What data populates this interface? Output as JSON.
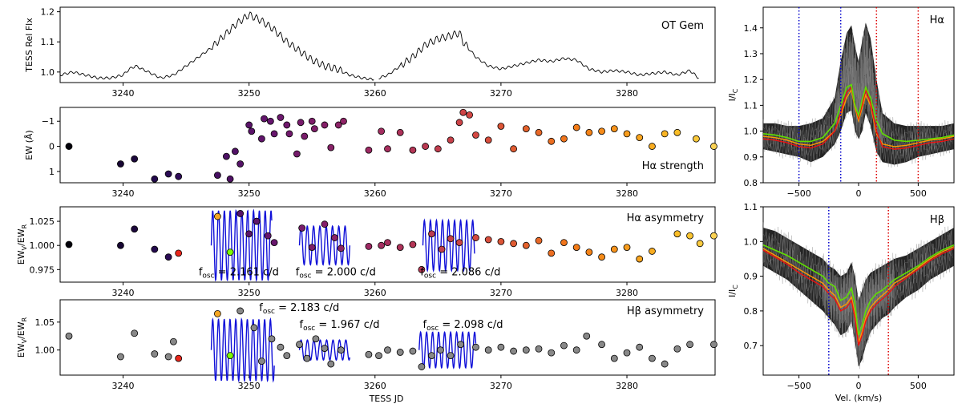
{
  "figure": {
    "xlabel_left": "TESS JD",
    "xlabel_right": "Vel. (km/s)"
  },
  "colors": {
    "line_black": "#000000",
    "sine_blue": "#1010d8",
    "marker_orange": "#f5a623",
    "marker_green": "#7cfc00",
    "marker_red": "#e8261b",
    "marker_grey": "#888888",
    "vline_blue": "#0000cc",
    "vline_red": "#dd0000",
    "median_green": "#5fe000",
    "spec_red": "#ee1111",
    "spec_orange": "#ff9a00"
  },
  "chart_data": [
    {
      "id": "lc",
      "type": "line",
      "title": "OT Gem",
      "xlabel": "",
      "ylabel": "TESS Rel Flx",
      "xlim": [
        3235,
        3287
      ],
      "ylim": [
        0.965,
        1.215
      ],
      "xticks": [
        3240,
        3250,
        3260,
        3270,
        3280
      ],
      "yticks": [
        1.0,
        1.1,
        1.2
      ],
      "ytick_labels": [
        "1.0",
        "1.1",
        "1.2"
      ],
      "segments": [
        {
          "x": [
            3235.0,
            3236.0,
            3237.0,
            3238.0,
            3239.0,
            3240.0,
            3240.5,
            3241.0,
            3242.0,
            3243.0,
            3244.0,
            3245.0,
            3246.0,
            3247.0,
            3248.0,
            3249.0,
            3250.0,
            3251.0,
            3252.0,
            3253.0,
            3254.0,
            3255.0,
            3256.0,
            3257.0,
            3258.0,
            3259.0,
            3259.9
          ],
          "y": [
            0.99,
            1.0,
            0.99,
            0.98,
            0.98,
            0.99,
            1.01,
            1.02,
            1.0,
            0.98,
            0.99,
            1.02,
            1.05,
            1.08,
            1.12,
            1.16,
            1.19,
            1.17,
            1.14,
            1.1,
            1.07,
            1.04,
            1.02,
            1.01,
            0.99,
            0.98,
            0.975
          ]
        },
        {
          "x": [
            3260.3,
            3261.0,
            3262.0,
            3263.0,
            3264.0,
            3265.0,
            3266.0,
            3266.7,
            3267.0,
            3268.0,
            3269.0,
            3270.0,
            3271.0,
            3272.0,
            3273.0,
            3274.0,
            3275.0,
            3276.0,
            3277.0,
            3278.0,
            3279.0,
            3280.0,
            3281.0,
            3282.0,
            3283.0,
            3284.0,
            3285.0,
            3285.7
          ],
          "y": [
            0.98,
            0.99,
            1.02,
            1.05,
            1.09,
            1.11,
            1.12,
            1.13,
            1.1,
            1.05,
            1.02,
            1.01,
            1.02,
            1.03,
            1.04,
            1.035,
            1.045,
            1.04,
            1.01,
            1.0,
            1.005,
            1.0,
            0.99,
            0.995,
            1.0,
            0.99,
            1.005,
            0.98
          ]
        }
      ]
    },
    {
      "id": "ha_ew",
      "type": "scatter",
      "title": "Hα strength",
      "xlabel": "",
      "ylabel": "EW (Å)",
      "xlim": [
        3235,
        3287
      ],
      "ylim": [
        1.45,
        -1.55
      ],
      "y_inverted": true,
      "xticks": [
        3240,
        3250,
        3260,
        3270,
        3280
      ],
      "yticks": [
        -1,
        0,
        1
      ],
      "ytick_labels": [
        "−1",
        "0",
        "1"
      ],
      "x": [
        3235.7,
        3239.8,
        3240.9,
        3242.5,
        3243.6,
        3244.4,
        3247.5,
        3248.2,
        3248.5,
        3248.9,
        3249.3,
        3250.0,
        3250.2,
        3251.0,
        3251.2,
        3251.7,
        3252.0,
        3252.5,
        3253.0,
        3253.2,
        3253.8,
        3254.1,
        3254.4,
        3255.0,
        3255.2,
        3256.0,
        3256.5,
        3257.1,
        3257.5,
        3259.5,
        3260.5,
        3261.0,
        3262.0,
        3263.0,
        3264.0,
        3265.0,
        3266.0,
        3266.7,
        3267.0,
        3267.5,
        3268.0,
        3269.0,
        3270.0,
        3271.0,
        3272.0,
        3273.0,
        3274.0,
        3275.0,
        3276.0,
        3277.0,
        3278.0,
        3279.0,
        3280.0,
        3281.0,
        3282.0,
        3283.0,
        3284.0,
        3285.5,
        3286.9
      ],
      "y": [
        0.0,
        0.7,
        0.5,
        1.3,
        1.1,
        1.2,
        1.15,
        0.4,
        1.3,
        0.2,
        0.7,
        -0.85,
        -0.6,
        -0.3,
        -1.1,
        -1.0,
        -0.5,
        -1.15,
        -0.85,
        -0.5,
        0.3,
        -0.95,
        -0.4,
        -1.0,
        -0.7,
        -0.85,
        0.05,
        -0.85,
        -1.0,
        0.15,
        -0.6,
        0.1,
        -0.55,
        0.15,
        0.0,
        0.1,
        -0.25,
        -0.95,
        -1.35,
        -1.25,
        -0.45,
        -0.25,
        -0.8,
        0.1,
        -0.7,
        -0.55,
        -0.2,
        -0.3,
        -0.75,
        -0.55,
        -0.6,
        -0.7,
        -0.5,
        -0.35,
        0.0,
        -0.5,
        -0.55,
        -0.3,
        0.0
      ],
      "colormap": "magma (JD-ordered)"
    },
    {
      "id": "ha_asym",
      "type": "scatter",
      "title": "Hα asymmetry",
      "xlabel": "",
      "ylabel": "EWV/EWR",
      "xlim": [
        3235,
        3287
      ],
      "ylim": [
        0.962,
        1.04
      ],
      "xticks": [
        3240,
        3250,
        3260,
        3270,
        3280
      ],
      "yticks": [
        0.975,
        1.0,
        1.025
      ],
      "ytick_labels": [
        "0.975",
        "1.000",
        "1.025"
      ],
      "x": [
        3235.7,
        3239.8,
        3240.9,
        3242.5,
        3243.6,
        3244.4,
        3247.5,
        3248.5,
        3249.3,
        3250.0,
        3250.6,
        3251.5,
        3252.0,
        3254.2,
        3255.0,
        3256.0,
        3256.8,
        3257.3,
        3259.5,
        3260.5,
        3261.0,
        3262.0,
        3263.0,
        3263.7,
        3264.5,
        3265.3,
        3266.0,
        3266.7,
        3268.0,
        3269.0,
        3270.0,
        3271.0,
        3272.0,
        3273.0,
        3274.0,
        3275.0,
        3276.0,
        3277.0,
        3278.0,
        3279.0,
        3280.0,
        3281.0,
        3282.0,
        3284.0,
        3285.0,
        3285.8,
        3286.9
      ],
      "y": [
        1.001,
        1.0,
        1.017,
        0.996,
        0.988,
        0.992,
        1.03,
        0.993,
        1.033,
        1.012,
        1.025,
        1.01,
        1.003,
        1.018,
        0.998,
        1.022,
        1.008,
        0.997,
        0.999,
        1.0,
        1.003,
        0.998,
        1.001,
        0.975,
        1.012,
        0.996,
        1.007,
        1.003,
        1.008,
        1.006,
        1.004,
        1.002,
        1.0,
        1.005,
        0.992,
        1.003,
        0.998,
        0.993,
        0.988,
        0.996,
        0.998,
        0.986,
        0.994,
        1.012,
        1.01,
        1.002,
        1.01
      ],
      "highlight": {
        "orange_x": 3247.5,
        "green_x": 3248.5,
        "red_x": 3244.4
      },
      "fits": [
        {
          "label": "f_osc = 2.161 c/d",
          "freq": 2.161,
          "x_start": 3247.0,
          "x_end": 3251.8,
          "center": 1.0,
          "amp": 0.036
        },
        {
          "label": "f_osc = 2.000 c/d",
          "freq": 2.0,
          "x_start": 3254.0,
          "x_end": 3258.0,
          "center": 1.0,
          "amp": 0.02
        },
        {
          "label": "f_osc = 2.086 c/d",
          "freq": 2.086,
          "x_start": 3263.8,
          "x_end": 3267.9,
          "center": 1.0,
          "amp": 0.026
        }
      ],
      "annotations": [
        {
          "base": "f",
          "sub": "osc",
          "rest": " = 2.161 c/d",
          "x": 3246.0,
          "y": 0.969
        },
        {
          "base": "f",
          "sub": "osc",
          "rest": " = 2.000 c/d",
          "x": 3253.7,
          "y": 0.969
        },
        {
          "base": "f",
          "sub": "osc",
          "rest": " = 2.086 c/d",
          "x": 3263.6,
          "y": 0.969
        }
      ]
    },
    {
      "id": "hb_asym",
      "type": "scatter",
      "title": "Hβ asymmetry",
      "xlabel": "TESS JD",
      "ylabel": "EWV/EWR",
      "xlim": [
        3235,
        3287
      ],
      "ylim": [
        0.955,
        1.09
      ],
      "xticks": [
        3240,
        3250,
        3260,
        3270,
        3280
      ],
      "yticks": [
        1.0,
        1.05
      ],
      "ytick_labels": [
        "1.00",
        "1.05"
      ],
      "x": [
        3235.7,
        3239.8,
        3240.9,
        3242.5,
        3243.6,
        3244.0,
        3244.4,
        3247.5,
        3248.5,
        3249.3,
        3250.4,
        3251.0,
        3251.8,
        3252.5,
        3253.0,
        3254.0,
        3254.6,
        3255.3,
        3256.0,
        3256.5,
        3257.3,
        3259.5,
        3260.3,
        3261.0,
        3262.0,
        3263.0,
        3263.7,
        3264.5,
        3265.2,
        3266.0,
        3266.8,
        3268.0,
        3269.0,
        3270.0,
        3271.0,
        3272.0,
        3273.0,
        3274.0,
        3275.0,
        3276.0,
        3276.8,
        3278.0,
        3279.0,
        3280.0,
        3281.0,
        3282.0,
        3283.0,
        3284.0,
        3285.0,
        3286.9
      ],
      "y": [
        1.025,
        0.988,
        1.03,
        0.993,
        0.988,
        1.015,
        0.985,
        1.065,
        0.99,
        1.07,
        1.04,
        0.98,
        1.02,
        1.005,
        0.99,
        1.01,
        0.985,
        1.02,
        1.003,
        0.975,
        1.0,
        0.992,
        0.99,
        1.0,
        0.996,
        0.998,
        0.97,
        0.99,
        1.0,
        0.99,
        1.01,
        1.005,
        1.0,
        1.005,
        0.998,
        1.0,
        1.002,
        0.995,
        1.008,
        1.0,
        1.025,
        1.01,
        0.985,
        0.995,
        1.005,
        0.985,
        0.975,
        1.002,
        1.01,
        1.01
      ],
      "highlight": {
        "orange_x": 3247.5,
        "green_x": 3248.5,
        "red_x": 3244.4
      },
      "fits": [
        {
          "label": "f_osc = 2.183 c/d",
          "freq": 2.183,
          "x_start": 3247.0,
          "x_end": 3252.0,
          "center": 1.0,
          "amp": 0.055
        },
        {
          "label": "f_osc = 1.967 c/d",
          "freq": 1.967,
          "x_start": 3254.0,
          "x_end": 3258.0,
          "center": 1.0,
          "amp": 0.018
        },
        {
          "label": "f_osc = 2.098 c/d",
          "freq": 2.098,
          "x_start": 3263.5,
          "x_end": 3268.0,
          "center": 1.0,
          "amp": 0.032
        }
      ],
      "annotations": [
        {
          "base": "f",
          "sub": "osc",
          "rest": " = 2.183 c/d",
          "x": 3250.8,
          "y": 1.07
        },
        {
          "base": "f",
          "sub": "osc",
          "rest": " = 1.967 c/d",
          "x": 3254.0,
          "y": 1.04
        },
        {
          "base": "f",
          "sub": "osc",
          "rest": " = 2.098 c/d",
          "x": 3263.8,
          "y": 1.04
        }
      ]
    },
    {
      "id": "ha_prof",
      "type": "line",
      "title": "Hα",
      "xlabel": "",
      "ylabel": "I/IC",
      "xlim": [
        -800,
        800
      ],
      "ylim": [
        0.8,
        1.48
      ],
      "xticks": [
        -500,
        0,
        500
      ],
      "yticks": [
        0.8,
        0.9,
        1.0,
        1.1,
        1.2,
        1.3,
        1.4
      ],
      "ytick_labels": [
        "0.8",
        "0.9",
        "1.0",
        "1.1",
        "1.2",
        "1.3",
        "1.4"
      ],
      "vlines_blue": [
        -500,
        -150
      ],
      "vlines_red": [
        150,
        500
      ],
      "profile_v": [
        -800,
        -700,
        -600,
        -500,
        -400,
        -300,
        -200,
        -150,
        -100,
        -60,
        -30,
        0,
        30,
        60,
        100,
        150,
        200,
        300,
        400,
        500,
        600,
        700,
        800
      ],
      "median_green": [
        0.99,
        0.985,
        0.975,
        0.96,
        0.96,
        0.975,
        1.03,
        1.1,
        1.17,
        1.18,
        1.1,
        1.06,
        1.12,
        1.17,
        1.13,
        1.04,
        0.99,
        0.965,
        0.96,
        0.965,
        0.97,
        0.975,
        0.985
      ],
      "spectrum_red": [
        0.97,
        0.965,
        0.955,
        0.94,
        0.935,
        0.95,
        1.0,
        1.07,
        1.15,
        1.17,
        1.1,
        1.05,
        1.1,
        1.16,
        1.11,
        1.0,
        0.94,
        0.93,
        0.935,
        0.945,
        0.955,
        0.96,
        0.97
      ],
      "spectrum_orange": [
        0.98,
        0.975,
        0.965,
        0.95,
        0.945,
        0.96,
        1.0,
        1.06,
        1.13,
        1.16,
        1.09,
        1.04,
        1.09,
        1.14,
        1.1,
        0.99,
        0.95,
        0.94,
        0.945,
        0.955,
        0.965,
        0.97,
        0.98
      ],
      "envelope_lo": [
        0.93,
        0.92,
        0.91,
        0.9,
        0.88,
        0.9,
        0.95,
        1.0,
        1.07,
        1.08,
        1.0,
        0.97,
        1.0,
        1.07,
        1.02,
        0.92,
        0.88,
        0.87,
        0.88,
        0.9,
        0.91,
        0.92,
        0.93
      ],
      "envelope_hi": [
        1.03,
        1.03,
        1.02,
        1.02,
        1.03,
        1.05,
        1.13,
        1.27,
        1.38,
        1.41,
        1.33,
        1.27,
        1.35,
        1.42,
        1.36,
        1.2,
        1.07,
        1.03,
        1.02,
        1.02,
        1.02,
        1.02,
        1.03
      ]
    },
    {
      "id": "hb_prof",
      "type": "line",
      "title": "Hβ",
      "xlabel": "Vel. (km/s)",
      "ylabel": "I/IC",
      "xlim": [
        -800,
        800
      ],
      "ylim": [
        0.615,
        1.1
      ],
      "xticks": [
        -500,
        0,
        500
      ],
      "yticks": [
        0.7,
        0.8,
        0.9,
        1.0,
        1.1
      ],
      "ytick_labels": [
        "0.7",
        "0.8",
        "0.9",
        "1.0",
        "1.1"
      ],
      "vlines_blue": [
        -250
      ],
      "vlines_red": [
        250
      ],
      "profile_v": [
        -800,
        -700,
        -600,
        -500,
        -400,
        -300,
        -250,
        -200,
        -150,
        -100,
        -60,
        -30,
        0,
        30,
        60,
        100,
        150,
        200,
        250,
        300,
        400,
        500,
        600,
        700,
        800
      ],
      "median_green": [
        0.99,
        0.975,
        0.96,
        0.94,
        0.92,
        0.9,
        0.88,
        0.87,
        0.83,
        0.84,
        0.865,
        0.82,
        0.73,
        0.76,
        0.8,
        0.83,
        0.85,
        0.86,
        0.875,
        0.89,
        0.91,
        0.93,
        0.955,
        0.975,
        0.99
      ],
      "spectrum_red": [
        0.975,
        0.955,
        0.935,
        0.91,
        0.89,
        0.87,
        0.85,
        0.835,
        0.8,
        0.81,
        0.83,
        0.78,
        0.7,
        0.73,
        0.77,
        0.8,
        0.82,
        0.835,
        0.85,
        0.87,
        0.895,
        0.92,
        0.945,
        0.965,
        0.98
      ],
      "spectrum_orange": [
        0.98,
        0.96,
        0.94,
        0.92,
        0.9,
        0.88,
        0.86,
        0.845,
        0.81,
        0.82,
        0.84,
        0.79,
        0.71,
        0.74,
        0.78,
        0.81,
        0.83,
        0.845,
        0.86,
        0.88,
        0.9,
        0.925,
        0.95,
        0.97,
        0.985
      ],
      "envelope_lo": [
        0.93,
        0.91,
        0.89,
        0.86,
        0.83,
        0.8,
        0.78,
        0.76,
        0.73,
        0.74,
        0.77,
        0.71,
        0.64,
        0.66,
        0.7,
        0.74,
        0.76,
        0.78,
        0.79,
        0.81,
        0.84,
        0.86,
        0.89,
        0.91,
        0.93
      ],
      "envelope_hi": [
        1.04,
        1.03,
        1.01,
        0.99,
        0.97,
        0.95,
        0.93,
        0.92,
        0.9,
        0.91,
        0.94,
        0.9,
        0.83,
        0.86,
        0.89,
        0.91,
        0.92,
        0.93,
        0.94,
        0.95,
        0.96,
        0.98,
        1.0,
        1.02,
        1.04
      ]
    }
  ]
}
